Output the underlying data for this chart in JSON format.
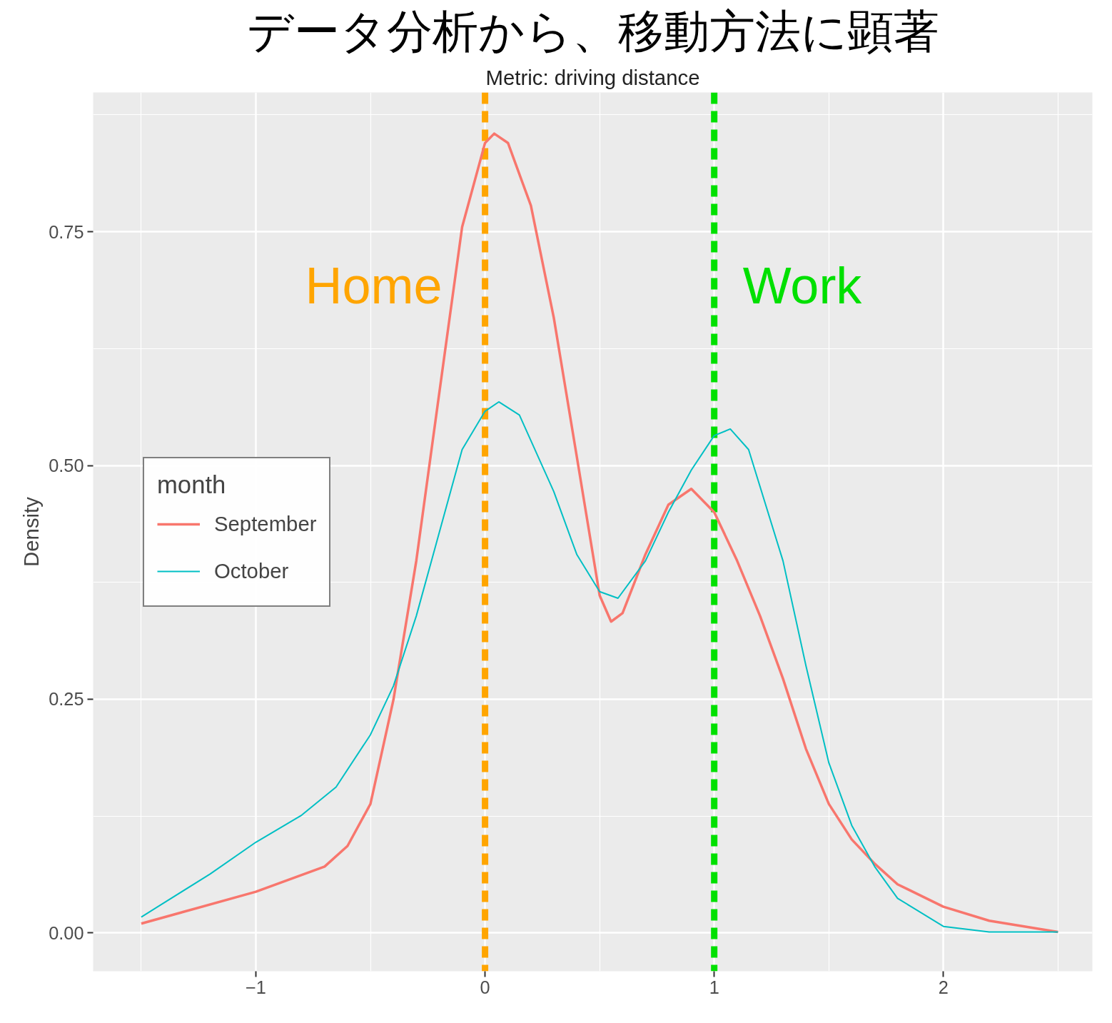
{
  "chart_data": {
    "type": "line",
    "title": "データ分析から、移動方法に顕著",
    "subtitle": "Metric: driving distance",
    "ylabel": "Density",
    "xlim": [
      -1.71,
      2.65
    ],
    "ylim": [
      -0.041,
      0.899
    ],
    "xticks": [
      -1,
      0,
      1,
      2
    ],
    "yticks": [
      {
        "value": 0,
        "label": "0.00"
      },
      {
        "value": 0.25,
        "label": "0.25"
      },
      {
        "value": 0.5,
        "label": "0.50"
      },
      {
        "value": 0.75,
        "label": "0.75"
      }
    ],
    "grid": true,
    "legend": "left",
    "legend_title": "month",
    "line_style": "solid",
    "marker": "none",
    "series": [
      {
        "name": "September",
        "color": "#f8766d",
        "x": [
          -1.5,
          -1,
          -0.7,
          -0.6,
          -0.5,
          -0.4,
          -0.3,
          -0.2,
          -0.1,
          0,
          0.04,
          0.1,
          0.2,
          0.3,
          0.4,
          0.5,
          0.55,
          0.6,
          0.7,
          0.8,
          0.9,
          1.0,
          1.1,
          1.2,
          1.3,
          1.4,
          1.5,
          1.6,
          1.7,
          1.8,
          2.0,
          2.2,
          2.5
        ],
        "values": [
          0.01,
          0.044,
          0.071,
          0.093,
          0.138,
          0.249,
          0.398,
          0.577,
          0.755,
          0.845,
          0.855,
          0.845,
          0.778,
          0.658,
          0.51,
          0.361,
          0.333,
          0.342,
          0.405,
          0.458,
          0.475,
          0.45,
          0.398,
          0.339,
          0.272,
          0.197,
          0.138,
          0.1,
          0.074,
          0.052,
          0.028,
          0.013,
          0.001
        ]
      },
      {
        "name": "October",
        "color": "#00bfc4",
        "x": [
          -1.5,
          -1.2,
          -1,
          -0.8,
          -0.65,
          -0.5,
          -0.4,
          -0.3,
          -0.2,
          -0.1,
          0,
          0.06,
          0.15,
          0.3,
          0.4,
          0.5,
          0.58,
          0.7,
          0.8,
          0.9,
          1.0,
          1.07,
          1.15,
          1.3,
          1.4,
          1.5,
          1.6,
          1.7,
          1.8,
          2.0,
          2.2,
          2.5
        ],
        "values": [
          0.017,
          0.063,
          0.097,
          0.126,
          0.156,
          0.212,
          0.264,
          0.339,
          0.428,
          0.517,
          0.558,
          0.568,
          0.554,
          0.472,
          0.405,
          0.365,
          0.358,
          0.398,
          0.45,
          0.495,
          0.532,
          0.539,
          0.517,
          0.398,
          0.286,
          0.182,
          0.115,
          0.071,
          0.037,
          0.007,
          0.001,
          0.001
        ]
      }
    ],
    "ref_lines": [
      {
        "axis": "x",
        "value": 0,
        "label": "Home",
        "color": "#ffa500",
        "line_style": "dashed"
      },
      {
        "axis": "x",
        "value": 1,
        "label": "Work",
        "color": "#00e000",
        "line_style": "dashed"
      }
    ]
  }
}
